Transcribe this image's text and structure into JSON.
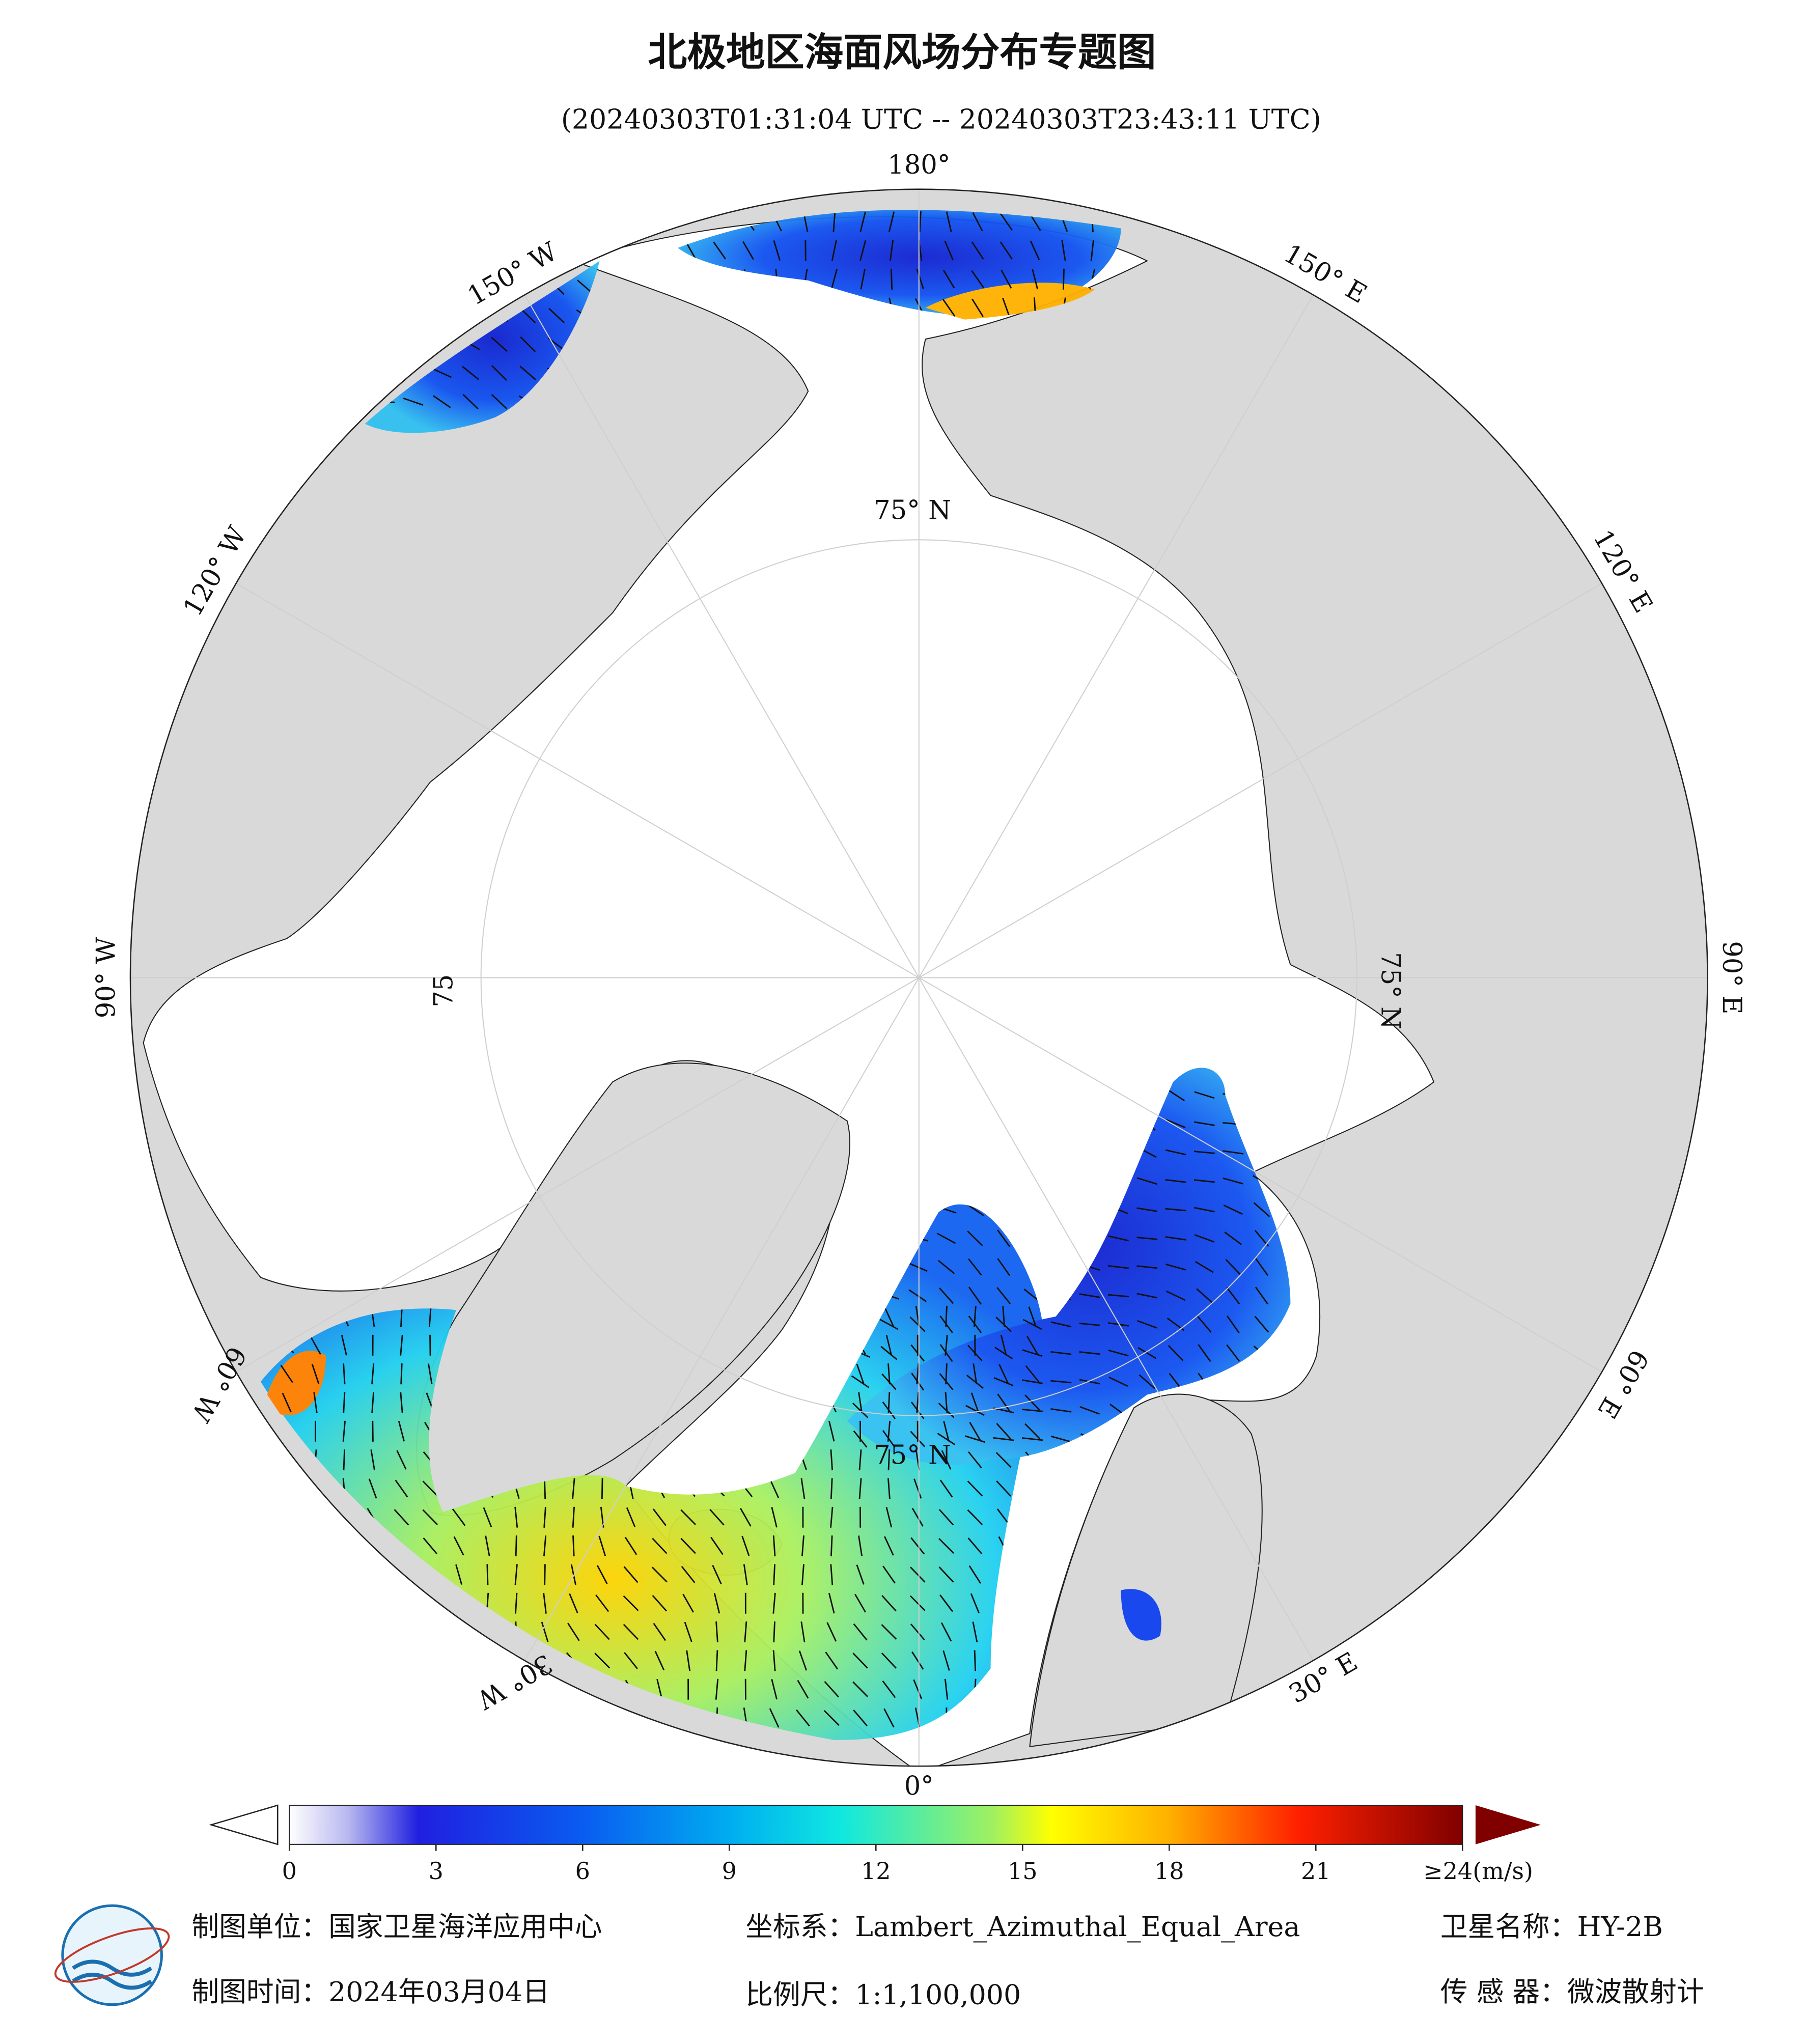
{
  "header": {
    "title": "北极地区海面风场分布专题图",
    "subtitle": "(20240303T01:31:04 UTC -- 20240303T23:43:11 UTC)"
  },
  "map": {
    "lon_labels": [
      "180°",
      "150° E",
      "120° E",
      "90° E",
      "60° E",
      "30° E",
      "0°",
      "30° W",
      "60° W",
      "90° W",
      "120° W",
      "150° W"
    ],
    "lat_labels": [
      "75° N",
      "75° N",
      "75° N",
      "75"
    ]
  },
  "colorbar": {
    "range": [
      0,
      24
    ],
    "ticks": [
      0,
      3,
      6,
      9,
      12,
      15,
      18,
      21,
      {
        "value": 24,
        "label": "≥24(m/s)"
      }
    ]
  },
  "footer": {
    "unit": "制图单位：国家卫星海洋应用中心",
    "crs": "坐标系：Lambert_Azimuthal_Equal_Area",
    "satellite": "卫星名称：HY-2B",
    "date": "制图时间：2024年03月04日",
    "scale": "比例尺：1:1,100,000",
    "sensor": "传 感 器：微波散射计"
  }
}
